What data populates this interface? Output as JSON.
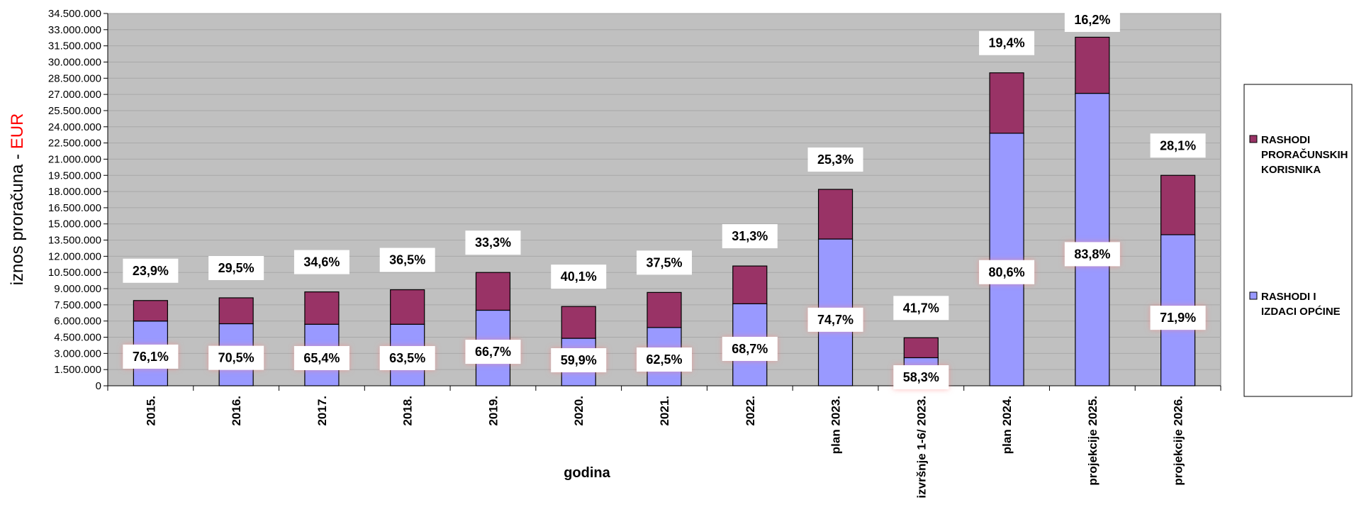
{
  "chart_data": {
    "type": "bar",
    "stacked": true,
    "categories": [
      "2015.",
      "2016.",
      "2017.",
      "2018.",
      "2019.",
      "2020.",
      "2021.",
      "2022.",
      "plan 2023.",
      "izvršnje 1-6/ 2023.",
      "plan 2024.",
      "projekcije 2025.",
      "projekcije 2026."
    ],
    "series": [
      {
        "name": "RASHODI I IZDACI OPĆINE",
        "color": "#9999ff",
        "values": [
          6000000,
          5750000,
          5700000,
          5700000,
          7000000,
          4400000,
          5400000,
          7600000,
          13600000,
          2600000,
          23400000,
          27100000,
          14000000
        ],
        "labels": [
          "76,1%",
          "70,5%",
          "65,4%",
          "63,5%",
          "66,7%",
          "59,9%",
          "62,5%",
          "68,7%",
          "74,7%",
          "58,3%",
          "80,6%",
          "83,8%",
          "71,9%"
        ]
      },
      {
        "name": "RASHODI PRORAČUNSKIH KORISNIKA",
        "color": "#993366",
        "values": [
          1900000,
          2400000,
          3000000,
          3200000,
          3500000,
          2950000,
          3250000,
          3500000,
          4600000,
          1850000,
          5600000,
          5200000,
          5500000
        ],
        "labels": [
          "23,9%",
          "29,5%",
          "34,6%",
          "36,5%",
          "33,3%",
          "40,1%",
          "37,5%",
          "31,3%",
          "25,3%",
          "41,7%",
          "19,4%",
          "16,2%",
          "28,1%"
        ]
      }
    ],
    "xlabel": "godina",
    "ylabel_main": "iznos proračuna  - ",
    "ylabel_unit": "EUR",
    "ylim": [
      0,
      34500000
    ],
    "yticks": [
      "0",
      "1.500.000",
      "3.000.000",
      "4.500.000",
      "6.000.000",
      "7.500.000",
      "9.000.000",
      "10.500.000",
      "12.000.000",
      "13.500.000",
      "15.000.000",
      "16.500.000",
      "18.000.000",
      "19.500.000",
      "21.000.000",
      "22.500.000",
      "24.000.000",
      "25.500.000",
      "27.000.000",
      "28.500.000",
      "30.000.000",
      "31.500.000",
      "33.000.000",
      "34.500.000"
    ],
    "grid": true,
    "legend_position": "right",
    "legend": [
      {
        "text": "RASHODI PRORAČUNSKIH KORISNIKA",
        "lines": [
          "RASHODI",
          "PRORAČUNSKIH",
          "KORISNIKA"
        ],
        "color": "#993366"
      },
      {
        "text": "RASHODI I IZDACI OPĆINE",
        "lines": [
          "RASHODI I",
          "IZDACI OPĆINE"
        ],
        "color": "#9999ff"
      }
    ],
    "plot_background": "#c0c0c0",
    "label_colors": {
      "unit": "#ff0000"
    }
  }
}
